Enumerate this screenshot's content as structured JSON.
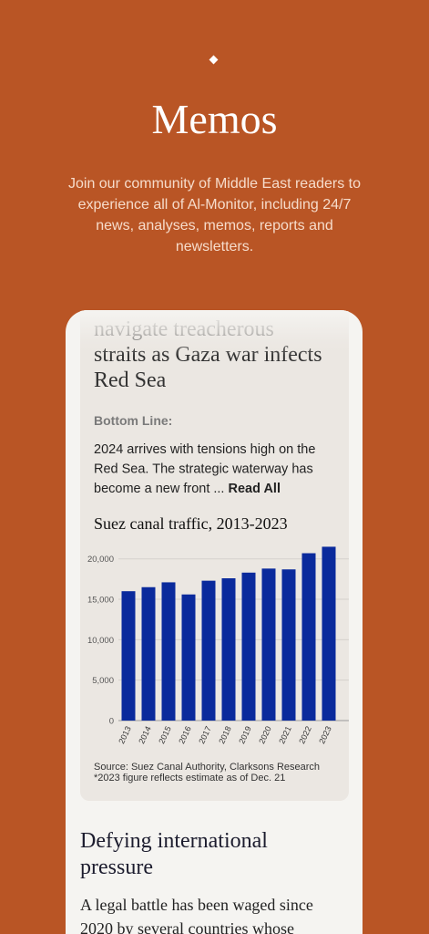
{
  "header": {
    "title": "Memos",
    "description": [
      "Join our community of Middle East readers to",
      "experience all of Al-Monitor, including 24/7",
      "news, analyses, memos, reports and",
      "newsletters."
    ]
  },
  "memo": {
    "headline": [
      "navigate treacherous",
      "straits as Gaza war infects",
      "Red Sea"
    ],
    "bottom_line_label": "Bottom Line:",
    "summary": [
      "2024 arrives with tensions high on the",
      "Red Sea. The strategic waterway has",
      "become a new front ... "
    ],
    "read_all": "Read All"
  },
  "chart_data": {
    "type": "bar",
    "title": "Suez canal traffic, 2013-2023",
    "categories": [
      "2013",
      "2014",
      "2015",
      "2016",
      "2017",
      "2018",
      "2019",
      "2020",
      "2021",
      "2022",
      "2023"
    ],
    "values": [
      16000,
      16500,
      17100,
      15600,
      17300,
      17600,
      18300,
      18800,
      18700,
      20700,
      21500
    ],
    "color": "#0a2a9c",
    "ylim": [
      0,
      22000
    ],
    "yticks": [
      0,
      {
        "value": 5000,
        "label": "5,000"
      },
      {
        "value": 10000,
        "label": "10,000"
      },
      {
        "value": 15000,
        "label": "15,000"
      },
      {
        "value": 20000,
        "label": "20,000"
      }
    ],
    "grid": true,
    "notes": [
      "Source: Suez Canal Authority, Clarksons Research",
      "*2023 figure reflects estimate as of Dec. 21"
    ]
  },
  "next_memo": {
    "headline": [
      "Defying international",
      "pressure"
    ],
    "summary": [
      "A legal battle has been waged since",
      "2020 by several countries whose"
    ]
  }
}
